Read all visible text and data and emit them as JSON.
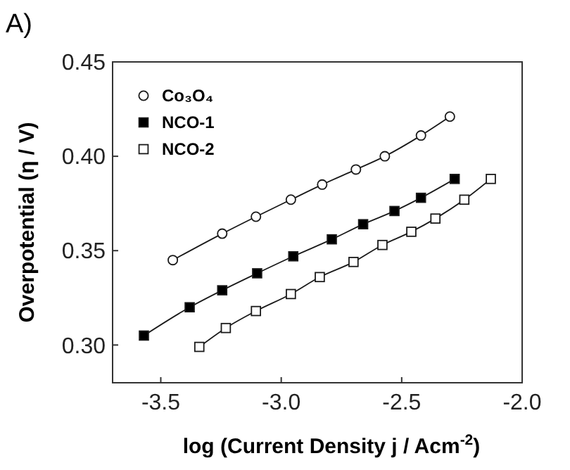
{
  "chart_data": {
    "type": "line",
    "title": "A)",
    "xlabel": "log (Current Density j / Acm$^{-2}$)",
    "ylabel": "Overpotential (η / V)",
    "xlim": [
      -3.7,
      -2.0
    ],
    "xticks": [
      -3.5,
      {
        "value": -3,
        "label": "-3.0"
      },
      -2.5,
      {
        "value": -2,
        "label": "-2.0"
      }
    ],
    "ylim": [
      0.28,
      0.45
    ],
    "yticks": [
      {
        "value": 0.3,
        "label": "0.30"
      },
      0.35,
      {
        "value": 0.4,
        "label": "0.40"
      },
      0.45
    ],
    "legend": "top left",
    "grid": false,
    "line_style": "solid",
    "series": [
      {
        "name": "Co₃O₄",
        "color": "#ffffff",
        "marker": "circle",
        "x": [
          -3.45,
          -3.245,
          -3.105,
          -2.96,
          -2.83,
          -2.69,
          -2.57,
          -2.42,
          -2.3
        ],
        "values": [
          0.345,
          0.359,
          0.368,
          0.377,
          0.385,
          0.393,
          0.4,
          0.411,
          0.421
        ]
      },
      {
        "name": "NCO-1",
        "color": "#000000",
        "marker": "square",
        "x": [
          -3.57,
          -3.38,
          -3.245,
          -3.1,
          -2.95,
          -2.79,
          -2.66,
          -2.53,
          -2.42,
          -2.28
        ],
        "values": [
          0.305,
          0.32,
          0.329,
          0.338,
          0.347,
          0.356,
          0.364,
          0.371,
          0.378,
          0.388
        ]
      },
      {
        "name": "NCO-2",
        "color": "#ffffff",
        "marker": "square",
        "x": [
          -3.34,
          -3.23,
          -3.105,
          -2.96,
          -2.84,
          -2.7,
          -2.58,
          -2.46,
          -2.36,
          -2.24,
          -2.13
        ],
        "values": [
          0.299,
          0.309,
          0.318,
          0.327,
          0.336,
          0.344,
          0.353,
          0.36,
          0.367,
          0.377,
          0.388
        ]
      }
    ]
  }
}
